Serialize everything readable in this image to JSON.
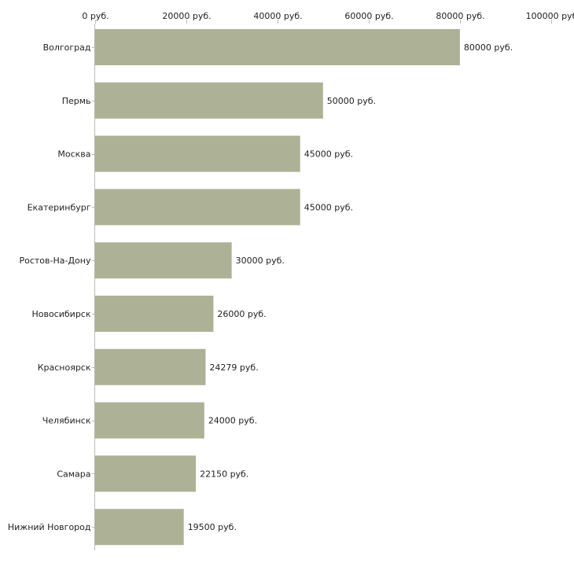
{
  "chart_data": {
    "type": "bar",
    "orientation": "horizontal",
    "title": "",
    "xlabel": "",
    "ylabel": "",
    "xlim": [
      0,
      100000
    ],
    "x_ticks": [
      0,
      20000,
      40000,
      60000,
      80000,
      100000
    ],
    "tick_labels": [
      "0 руб.",
      "20000 руб.",
      "40000 руб.",
      "60000 руб.",
      "80000 руб.",
      "100000 руб"
    ],
    "x_axis_position": "top",
    "grid": false,
    "bar_color": "#adb297",
    "categories": [
      "Волгоград",
      "Пермь",
      "Москва",
      "Екатеринбург",
      "Ростов-На-Дону",
      "Новосибирск",
      "Красноярск",
      "Челябинск",
      "Самара",
      "Нижний Новгород"
    ],
    "values": [
      80000,
      50000,
      45000,
      45000,
      30000,
      26000,
      24279,
      24000,
      22150,
      19500
    ],
    "value_labels": [
      "80000 руб.",
      "50000 руб.",
      "45000 руб.",
      "45000 руб.",
      "30000 руб.",
      "26000 руб.",
      "24279 руб.",
      "24000 руб.",
      "22150 руб.",
      "19500 руб."
    ]
  }
}
